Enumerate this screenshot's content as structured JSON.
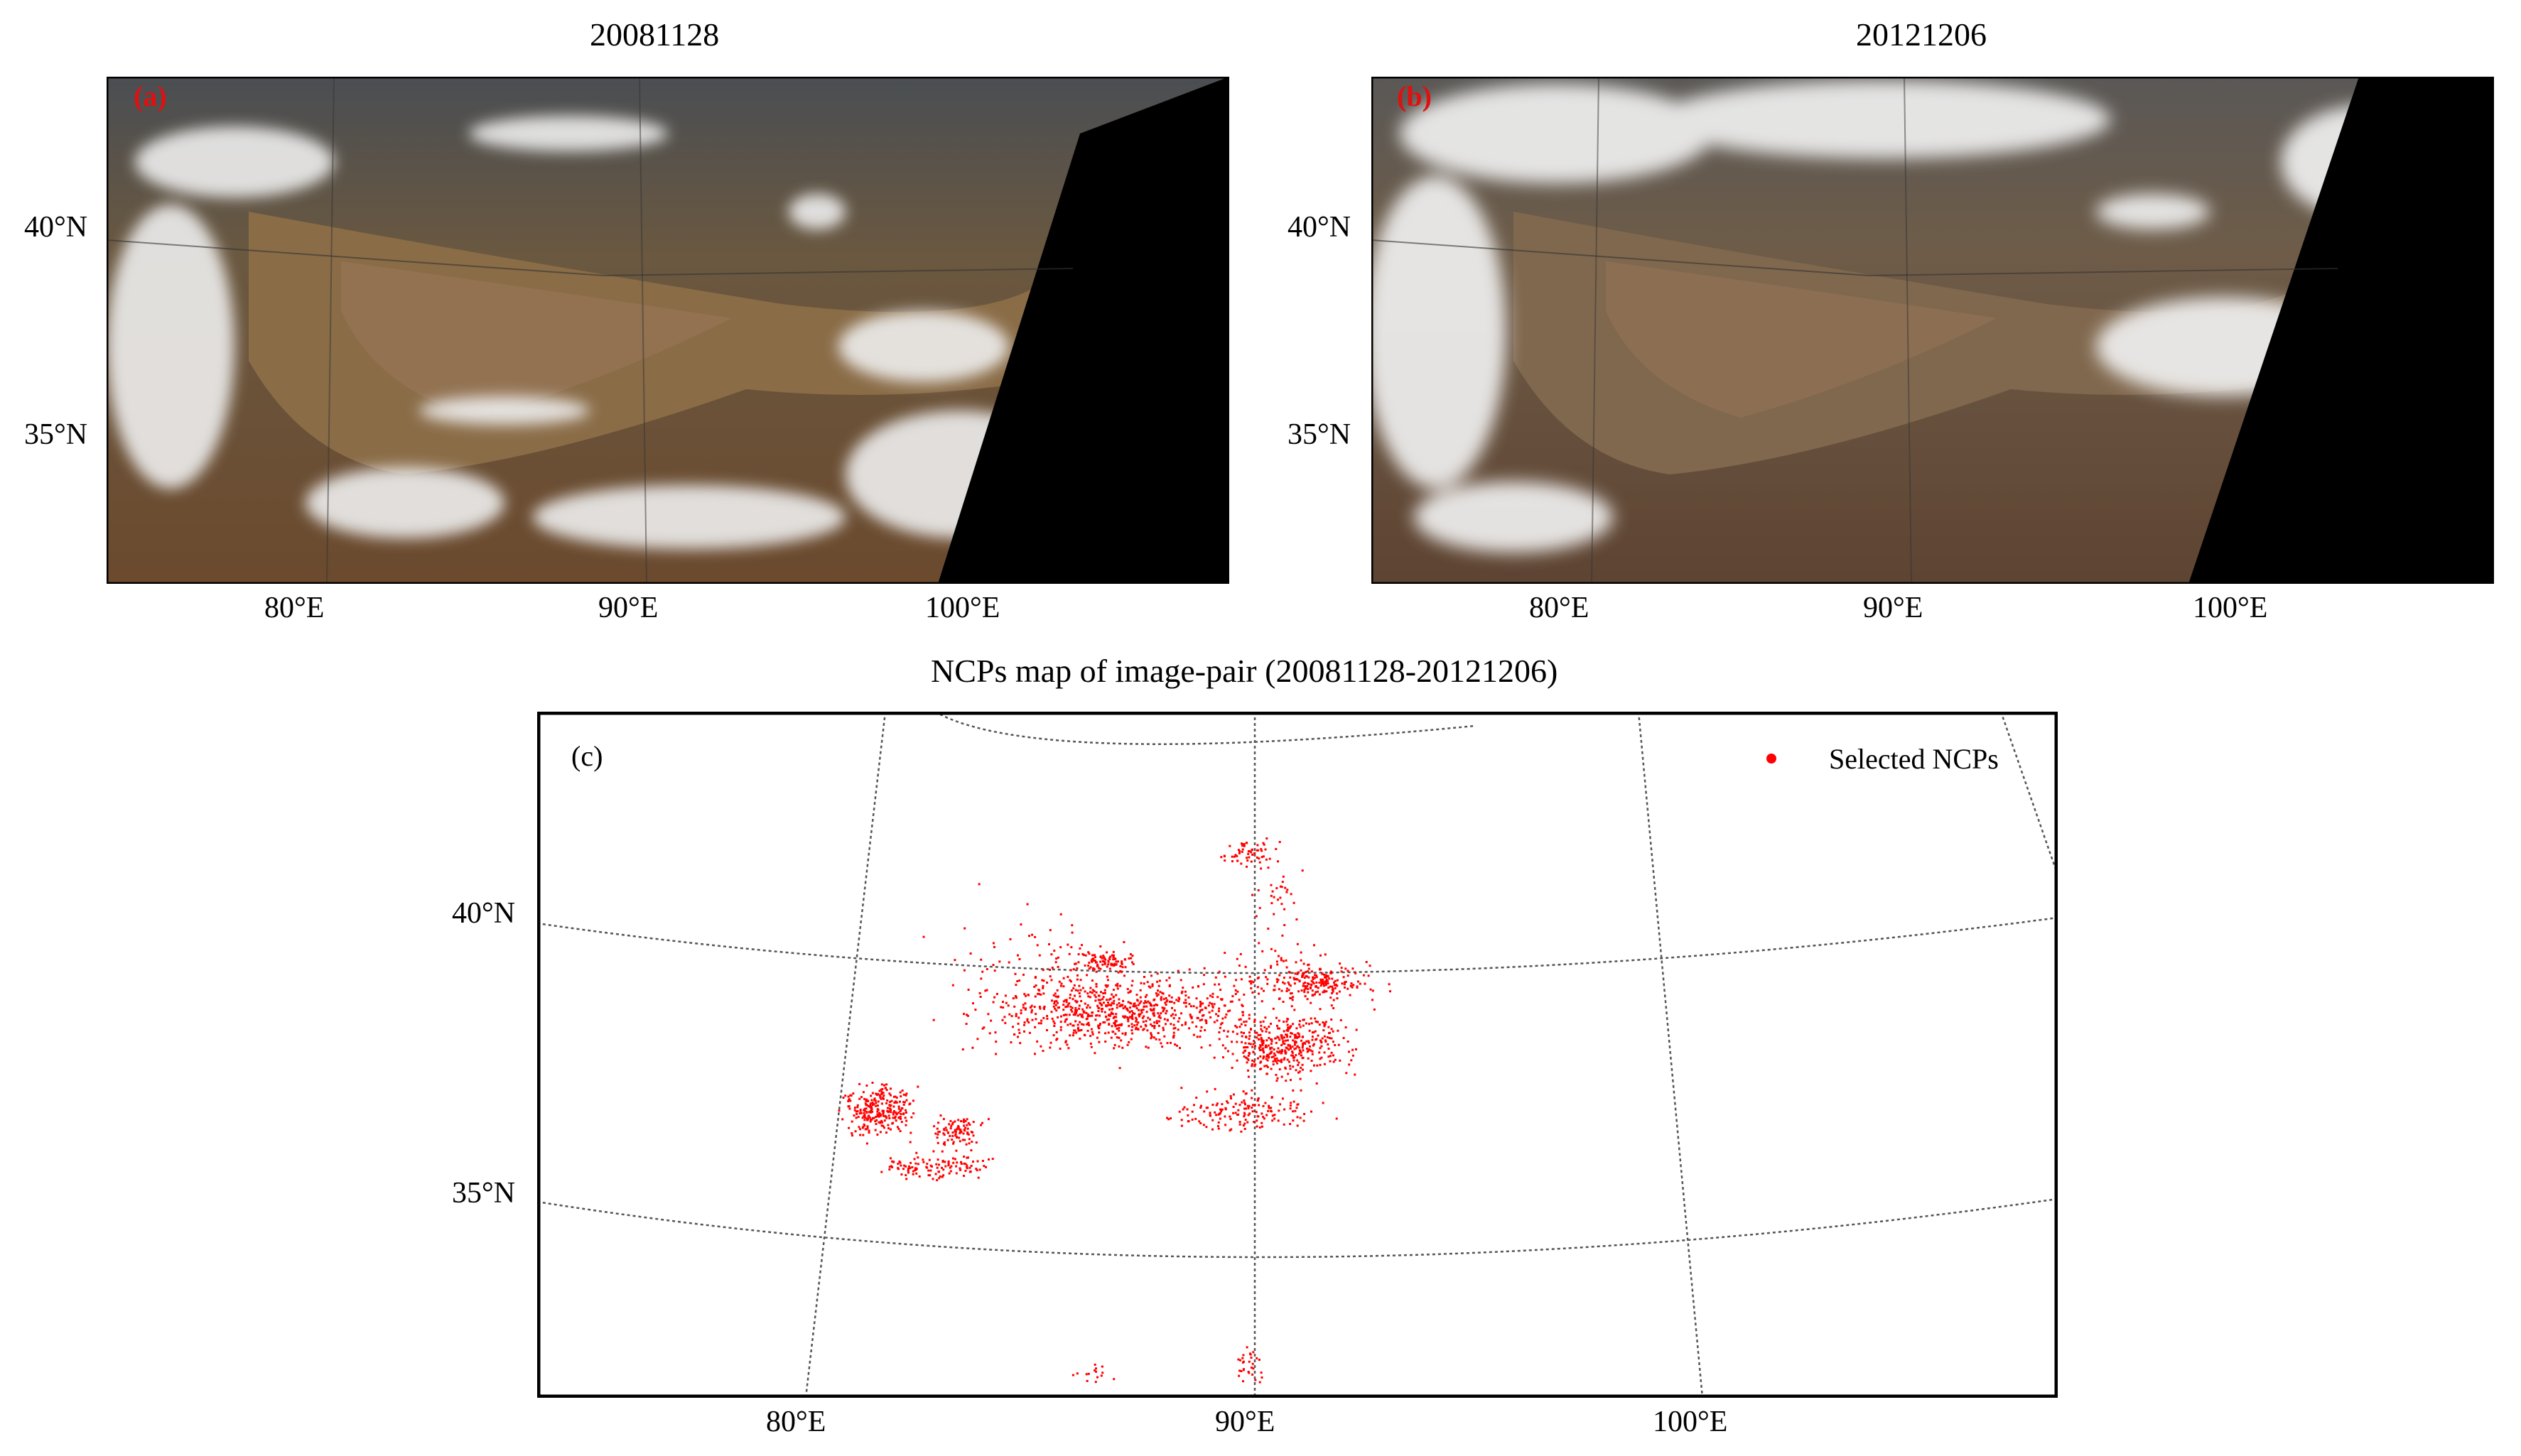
{
  "panel_a": {
    "title": "20081128",
    "label": "(a)",
    "lat_labels": [
      "40°N",
      "35°N"
    ],
    "lon_labels": [
      "80°E",
      "90°E",
      "100°E"
    ]
  },
  "panel_b": {
    "title": "20121206",
    "label": "(b)",
    "lat_labels": [
      "40°N",
      "35°N"
    ],
    "lon_labels": [
      "80°E",
      "90°E",
      "100°E"
    ]
  },
  "panel_c": {
    "title": "NCPs map of image-pair (20081128-20121206)",
    "label": "(c)",
    "legend_label": "Selected NCPs",
    "lat_labels": [
      "40°N",
      "35°N"
    ],
    "lon_labels": [
      "80°E",
      "90°E",
      "100°E"
    ],
    "point_color": "#ff0000"
  },
  "colors": {
    "desert": "#7a5e3f",
    "mountains": "#5a4636",
    "snow": "#f2f2f2",
    "nodata": "#000000",
    "ncp": "#ff0000"
  }
}
